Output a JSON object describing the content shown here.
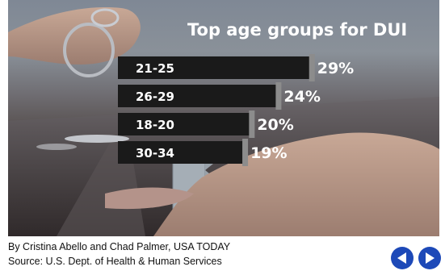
{
  "chart_data": {
    "type": "bar",
    "orientation": "horizontal",
    "title": "Top age groups for DUI",
    "categories": [
      "21-25",
      "26-29",
      "18-20",
      "30-34"
    ],
    "values": [
      29,
      24,
      20,
      19
    ],
    "value_suffix": "%",
    "xlim": [
      0,
      30
    ]
  },
  "labels": [
    "29%",
    "24%",
    "20%",
    "19%"
  ],
  "credit": "By Cristina Abello and Chad Palmer, USA TODAY",
  "source": "Source: U.S. Dept. of Health & Human Services",
  "colors": {
    "bar": "#1a1a1a",
    "bar_cap": "#8c8c8c",
    "text": "#ffffff",
    "nav": "#1d49b8"
  },
  "icons": {
    "prev": "arrow-left-icon",
    "next": "arrow-right-icon"
  }
}
